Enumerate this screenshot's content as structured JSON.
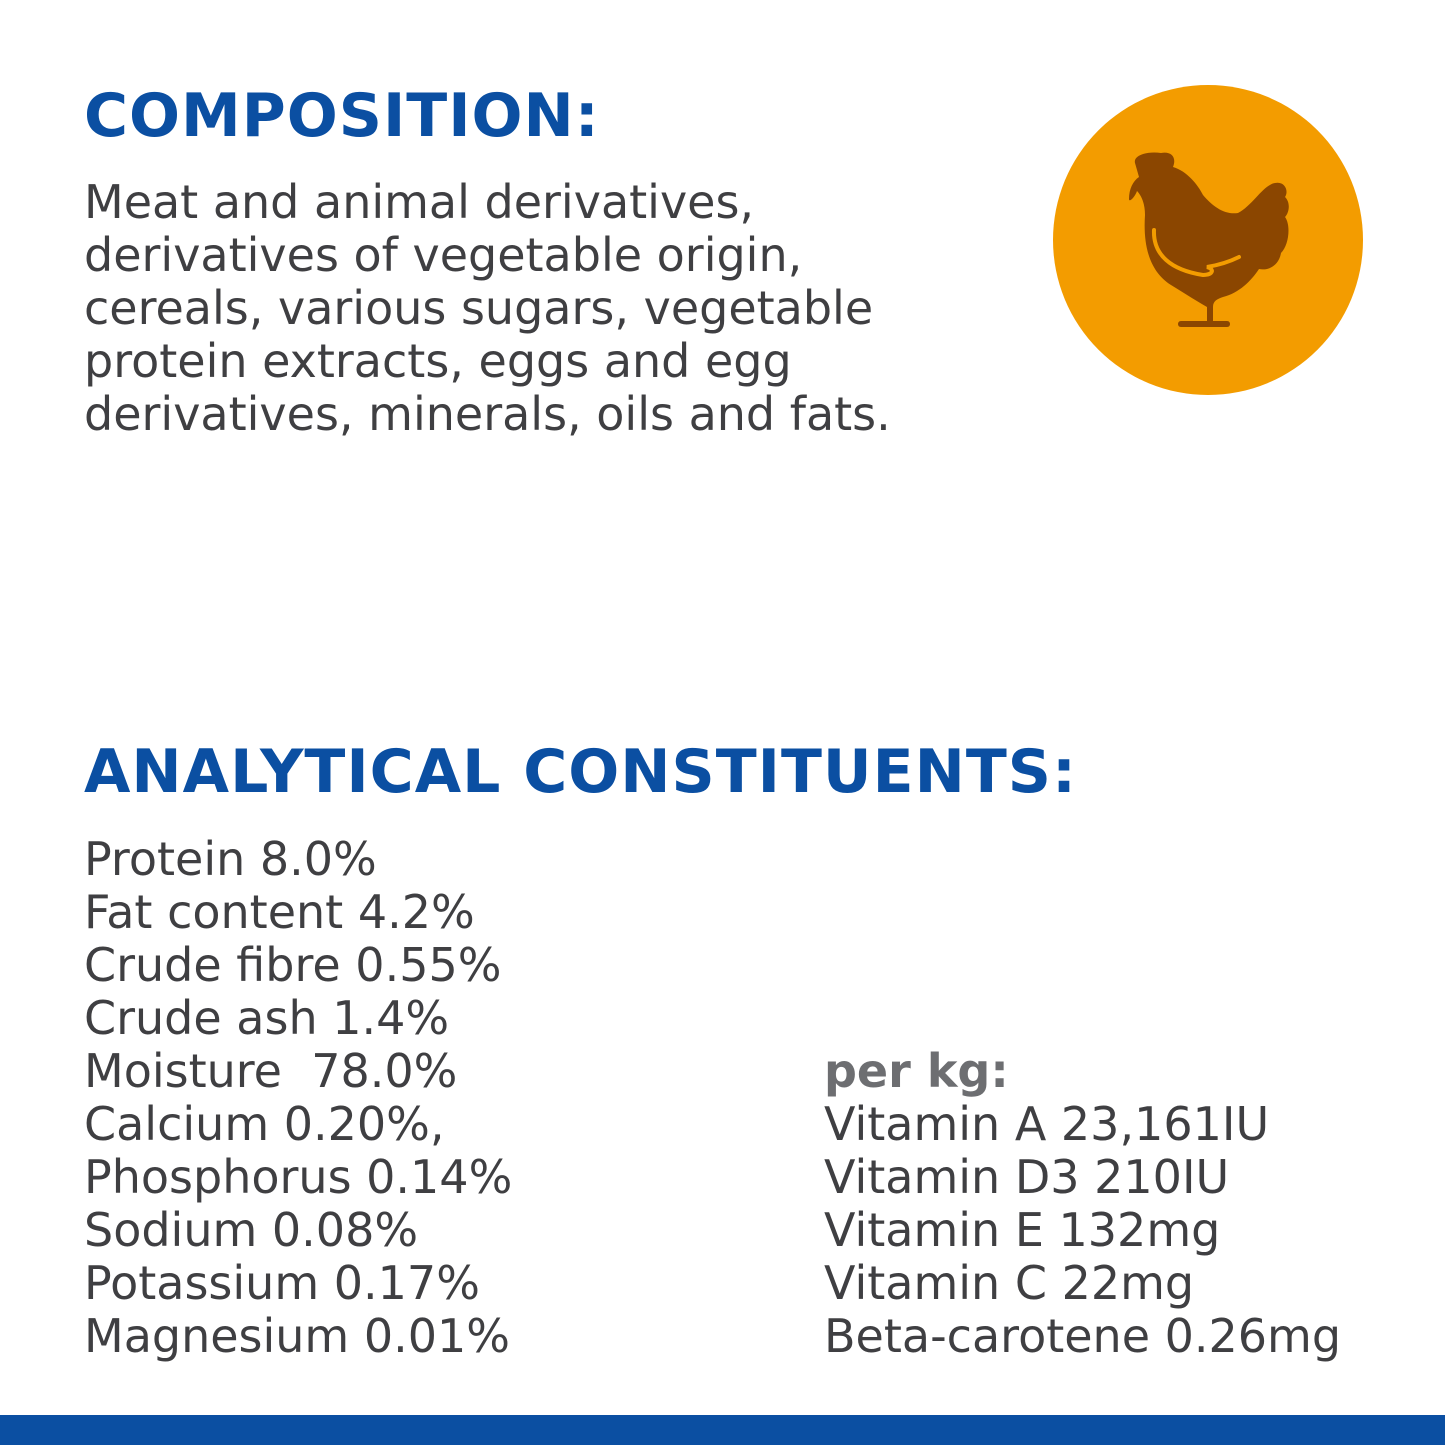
{
  "composition": {
    "title": "COMPOSITION:",
    "lines": [
      "Meat and animal derivatives,",
      "derivatives of vegetable origin,",
      "cereals, various sugars, vegetable",
      "protein extracts, eggs and egg",
      "derivatives, minerals, oils and fats."
    ]
  },
  "badge": {
    "icon": "chicken-icon",
    "bg_color": "#f39c00",
    "icon_color": "#8b4600"
  },
  "analytical": {
    "title": "ANALYTICAL CONSTITUENTS:",
    "items": [
      "Protein 8.0%",
      "Fat content 4.2%",
      "Crude fibre 0.55%",
      "Crude ash 1.4%",
      "Moisture  78.0%",
      "Calcium 0.20%,",
      "Phosphorus 0.14%",
      "Sodium 0.08%",
      "Potassium 0.17%",
      "Magnesium 0.01%"
    ],
    "per_kg_label": "per kg:",
    "per_kg_items": [
      "Vitamin A 23,161IU",
      "Vitamin D3 210IU",
      "Vitamin E 132mg",
      "Vitamin C 22mg",
      "Beta-carotene 0.26mg"
    ]
  },
  "colors": {
    "heading": "#0b4fa2",
    "text": "#3f3f42",
    "bottom_bar": "#0b4fa2"
  }
}
